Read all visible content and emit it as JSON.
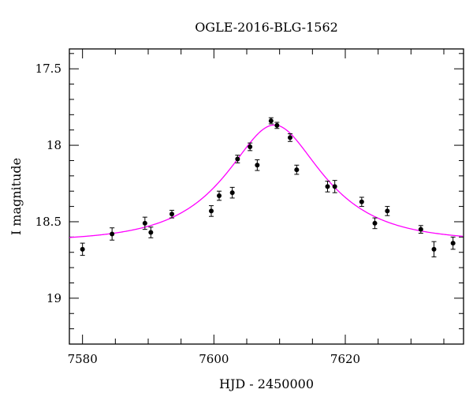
{
  "chart_data": {
    "type": "scatter",
    "title": "OGLE-2016-BLG-1562",
    "xlabel": "HJD - 2450000",
    "ylabel": "I magnitude",
    "xlim": [
      7578,
      7638
    ],
    "ylim": [
      19.3,
      17.37
    ],
    "y_inverted": true,
    "x_ticks": [
      7580,
      7600,
      7620
    ],
    "x_tick_labels": [
      "7580",
      "7600",
      "7620"
    ],
    "y_ticks": [
      17.5,
      18,
      18.5,
      19
    ],
    "y_tick_labels": [
      "17.5",
      "18",
      "18.5",
      "19"
    ],
    "grid": false,
    "series": [
      {
        "kind": "points_with_errorbars",
        "color": "#000000",
        "x": [
          7580.0,
          7584.5,
          7589.5,
          7590.4,
          7593.6,
          7599.6,
          7600.8,
          7602.8,
          7603.6,
          7605.5,
          7606.6,
          7608.7,
          7609.6,
          7611.6,
          7612.6,
          7617.3,
          7618.4,
          7622.5,
          7624.5,
          7626.4,
          7631.5,
          7633.5,
          7636.4
        ],
        "y": [
          18.68,
          18.58,
          18.51,
          18.57,
          18.45,
          18.43,
          18.33,
          18.31,
          18.09,
          18.01,
          18.13,
          17.84,
          17.87,
          17.95,
          18.16,
          18.27,
          18.27,
          18.37,
          18.51,
          18.43,
          18.55,
          18.68,
          18.64
        ],
        "err": [
          0.04,
          0.04,
          0.04,
          0.035,
          0.025,
          0.035,
          0.03,
          0.035,
          0.025,
          0.025,
          0.035,
          0.02,
          0.02,
          0.025,
          0.03,
          0.035,
          0.04,
          0.03,
          0.035,
          0.03,
          0.025,
          0.05,
          0.04
        ]
      },
      {
        "kind": "model_curve",
        "color": "#ff00ff",
        "t0": 7609.2,
        "u0": 0.55,
        "tE": 12.0,
        "base_mag": 18.63
      }
    ]
  }
}
